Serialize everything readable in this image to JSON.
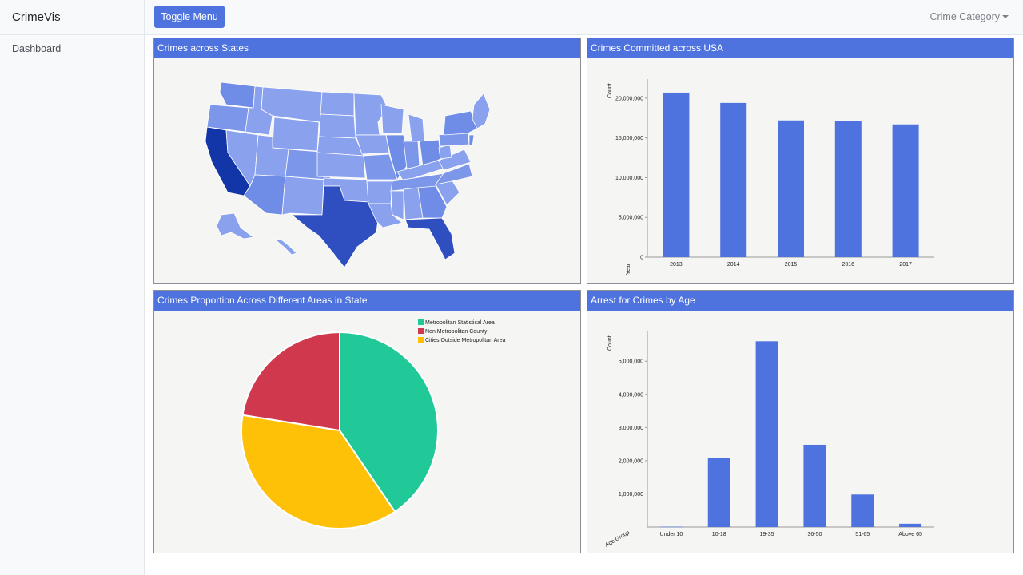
{
  "sidebar": {
    "brand": "CrimeVis",
    "items": [
      {
        "label": "Dashboard"
      }
    ]
  },
  "topbar": {
    "toggle_label": "Toggle Menu",
    "dropdown_label": "Crime Category"
  },
  "panels": {
    "map": {
      "title": "Crimes across States"
    },
    "bar": {
      "title": "Crimes Committed across USA"
    },
    "pie": {
      "title": "Crimes Proportion Across Different Areas in State"
    },
    "age": {
      "title": "Arrest for Crimes by Age"
    }
  },
  "colors": {
    "bar": "#4e73df",
    "header": "#4e73df",
    "map_light": "#8aa2ee",
    "map_mid": "#6f8ce6",
    "map_dark": "#2f4fc1",
    "map_darkest": "#1235a8"
  },
  "chart_data": [
    {
      "type": "bar",
      "categories": [
        "2013",
        "2014",
        "2015",
        "2016",
        "2017"
      ],
      "values": [
        20700000,
        19400000,
        17200000,
        17100000,
        16700000
      ],
      "xlabel": "Year",
      "ylabel": "Count",
      "ylim": [
        0,
        22000000
      ],
      "ticks": [
        0,
        5000000,
        10000000,
        15000000,
        20000000
      ],
      "tick_labels": [
        "0",
        "5,000,000",
        "10,000,000",
        "15,000,000",
        "20,000,000"
      ]
    },
    {
      "type": "pie",
      "categories": [
        "Metropolitan Statistical Area",
        "Non Metropolitan County",
        "Cities Outside Metropolitan Area"
      ],
      "values": [
        0.405,
        0.225,
        0.37
      ],
      "colors": [
        "#20c997",
        "#d0394d",
        "#ffc107"
      ],
      "legend": "top-right"
    },
    {
      "type": "bar",
      "categories": [
        "Under 10",
        "10-18",
        "19-35",
        "36-50",
        "51-65",
        "Above 65"
      ],
      "values": [
        10000,
        2080000,
        5600000,
        2480000,
        980000,
        100000
      ],
      "xlabel": "Age Group",
      "ylabel": "Count",
      "ylim": [
        0,
        5800000
      ],
      "ticks": [
        1000000,
        2000000,
        3000000,
        4000000,
        5000000
      ],
      "tick_labels": [
        "1,000,000",
        "2,000,000",
        "3,000,000",
        "4,000,000",
        "5,000,000"
      ]
    }
  ]
}
